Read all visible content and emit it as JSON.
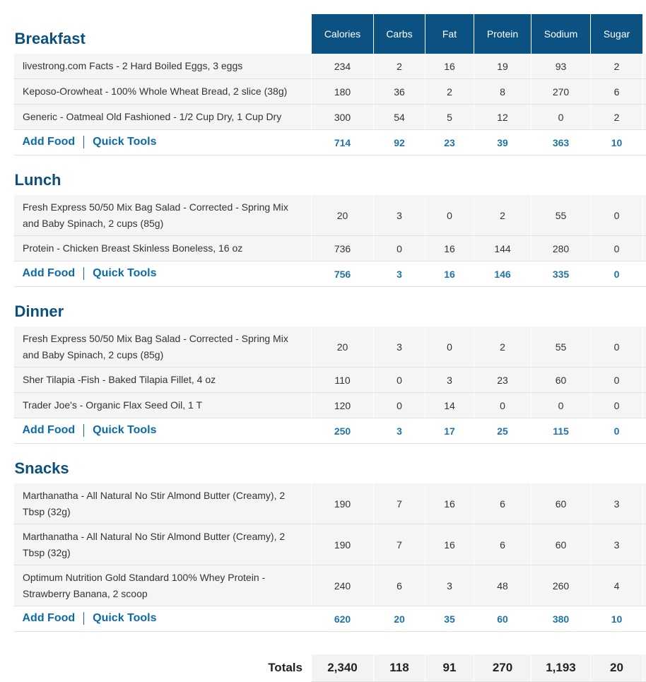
{
  "columns": [
    "Calories",
    "Carbs",
    "Fat",
    "Protein",
    "Sodium",
    "Sugar"
  ],
  "links": {
    "add_food": "Add Food",
    "quick_tools": "Quick Tools"
  },
  "meals": [
    {
      "name": "Breakfast",
      "foods": [
        {
          "name": "livestrong.com Facts - 2 Hard Boiled Eggs, 3 eggs",
          "values": [
            "234",
            "2",
            "16",
            "19",
            "93",
            "2"
          ]
        },
        {
          "name": "Keposo-Orowheat - 100% Whole Wheat Bread, 2 slice (38g)",
          "values": [
            "180",
            "36",
            "2",
            "8",
            "270",
            "6"
          ]
        },
        {
          "name": "Generic - Oatmeal Old Fashioned - 1/2 Cup Dry, 1 Cup Dry",
          "values": [
            "300",
            "54",
            "5",
            "12",
            "0",
            "2"
          ]
        }
      ],
      "totals": [
        "714",
        "92",
        "23",
        "39",
        "363",
        "10"
      ]
    },
    {
      "name": "Lunch",
      "foods": [
        {
          "name": "Fresh Express 50/50 Mix Bag Salad - Corrected - Spring Mix and Baby Spinach, 2 cups (85g)",
          "values": [
            "20",
            "3",
            "0",
            "2",
            "55",
            "0"
          ]
        },
        {
          "name": "Protein - Chicken Breast Skinless Boneless, 16 oz",
          "values": [
            "736",
            "0",
            "16",
            "144",
            "280",
            "0"
          ]
        }
      ],
      "totals": [
        "756",
        "3",
        "16",
        "146",
        "335",
        "0"
      ]
    },
    {
      "name": "Dinner",
      "foods": [
        {
          "name": "Fresh Express 50/50 Mix Bag Salad - Corrected - Spring Mix and Baby Spinach, 2 cups (85g)",
          "values": [
            "20",
            "3",
            "0",
            "2",
            "55",
            "0"
          ]
        },
        {
          "name": "Sher Tilapia -Fish - Baked Tilapia Fillet, 4 oz",
          "values": [
            "110",
            "0",
            "3",
            "23",
            "60",
            "0"
          ]
        },
        {
          "name": "Trader Joe's - Organic Flax Seed Oil, 1 T",
          "values": [
            "120",
            "0",
            "14",
            "0",
            "0",
            "0"
          ]
        }
      ],
      "totals": [
        "250",
        "3",
        "17",
        "25",
        "115",
        "0"
      ]
    },
    {
      "name": "Snacks",
      "foods": [
        {
          "name": "Marthanatha - All Natural No Stir Almond Butter (Creamy), 2 Tbsp (32g)",
          "values": [
            "190",
            "7",
            "16",
            "6",
            "60",
            "3"
          ]
        },
        {
          "name": "Marthanatha - All Natural No Stir Almond Butter (Creamy), 2 Tbsp (32g)",
          "values": [
            "190",
            "7",
            "16",
            "6",
            "60",
            "3"
          ]
        },
        {
          "name": "Optimum Nutrition Gold Standard 100% Whey Protein - Strawberry Banana, 2 scoop",
          "values": [
            "240",
            "6",
            "3",
            "48",
            "260",
            "4"
          ]
        }
      ],
      "totals": [
        "620",
        "20",
        "35",
        "60",
        "380",
        "10"
      ]
    }
  ],
  "grand_totals": {
    "label": "Totals",
    "values": [
      "2,340",
      "118",
      "91",
      "270",
      "1,193",
      "20"
    ]
  },
  "colors": {
    "header_bg": "#0b5282",
    "meal_title": "#0b4f7c",
    "link": "#0b6aa8",
    "totals_text": "#1f73a8"
  }
}
